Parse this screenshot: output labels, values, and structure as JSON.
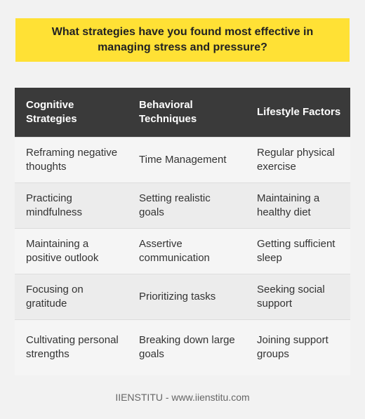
{
  "title": "What strategies have you found most effective in managing stress and pressure?",
  "table": {
    "headers": [
      "Cognitive Strategies",
      "Behavioral Techniques",
      "Lifestyle Factors"
    ],
    "rows": [
      [
        "Reframing negative thoughts",
        "Time Management",
        "Regular physical exercise"
      ],
      [
        "Practicing mindfulness",
        "Setting realistic goals",
        "Maintaining a healthy diet"
      ],
      [
        "Maintaining a positive outlook",
        "Assertive communication",
        "Getting sufficient sleep"
      ],
      [
        "Focusing on gratitude",
        "Prioritizing tasks",
        "Seeking social support"
      ],
      [
        "Cultivating personal strengths",
        "Breaking down large goals",
        "Joining support groups"
      ]
    ]
  },
  "footer": "IIENSTITU - www.iienstitu.com",
  "colors": {
    "title_bg": "#ffe135",
    "header_bg": "#3a3a3a",
    "page_bg": "#f2f2f2"
  }
}
